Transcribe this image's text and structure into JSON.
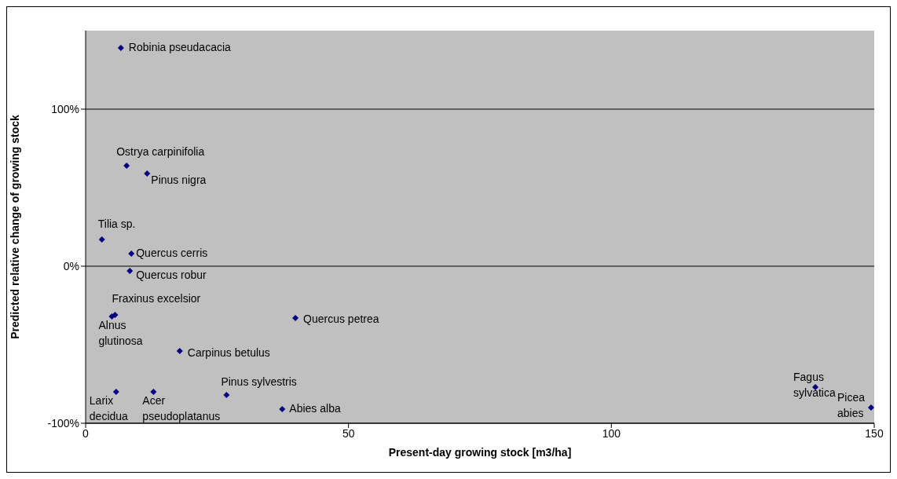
{
  "chart_data": {
    "type": "scatter",
    "xlabel": "Present-day growing stock [m3/ha]",
    "ylabel": "Predicted relative change of growing stock",
    "x": [
      6.7,
      7.8,
      11.7,
      3.1,
      8.7,
      8.4,
      5.6,
      5.0,
      39.9,
      17.9,
      5.8,
      12.9,
      26.8,
      37.4,
      138.8,
      149.4
    ],
    "series": [
      {
        "color": "#000080",
        "values": [
          139,
          64,
          59,
          17,
          8,
          -3,
          -31,
          -32,
          -33,
          -54,
          -80,
          -80,
          -82,
          -91,
          -77,
          -90
        ]
      }
    ],
    "xlim": [
      0,
      150
    ],
    "xticks": [
      0,
      50,
      100,
      150
    ],
    "ylim": [
      -100,
      150
    ],
    "yticks": [
      {
        "value": -100,
        "label": "-100%"
      },
      {
        "value": 0,
        "label": "0%"
      },
      {
        "value": 100,
        "label": "100%"
      }
    ],
    "grid": "y",
    "marker": "diamond",
    "legend": false,
    "annotations": [
      {
        "text": "Robinia pseudacacia",
        "x": 6.7,
        "y": 139
      },
      {
        "text": "Ostrya carpinifolia",
        "x": 7.8,
        "y": 64
      },
      {
        "text": "Pinus nigra",
        "x": 11.7,
        "y": 59
      },
      {
        "text": "Tilia sp.",
        "x": 3.1,
        "y": 17
      },
      {
        "text": "Quercus cerris",
        "x": 8.7,
        "y": 8
      },
      {
        "text": "Quercus robur",
        "x": 8.4,
        "y": -3
      },
      {
        "text": "Fraxinus excelsior",
        "x": 5.6,
        "y": -31
      },
      {
        "text": "Alnus glutinosa",
        "x": 5.0,
        "y": -32
      },
      {
        "text": "Quercus petrea",
        "x": 39.9,
        "y": -33
      },
      {
        "text": "Carpinus betulus",
        "x": 17.9,
        "y": -54
      },
      {
        "text": "Larix decidua",
        "x": 5.8,
        "y": -80
      },
      {
        "text": "Acer pseudoplatanus",
        "x": 12.9,
        "y": -80
      },
      {
        "text": "Pinus sylvestris",
        "x": 26.8,
        "y": -82
      },
      {
        "text": "Abies alba",
        "x": 37.4,
        "y": -91
      },
      {
        "text": "Fagus sylvatica",
        "x": 138.8,
        "y": -77
      },
      {
        "text": "Picea abies",
        "x": 149.4,
        "y": -90
      }
    ]
  }
}
